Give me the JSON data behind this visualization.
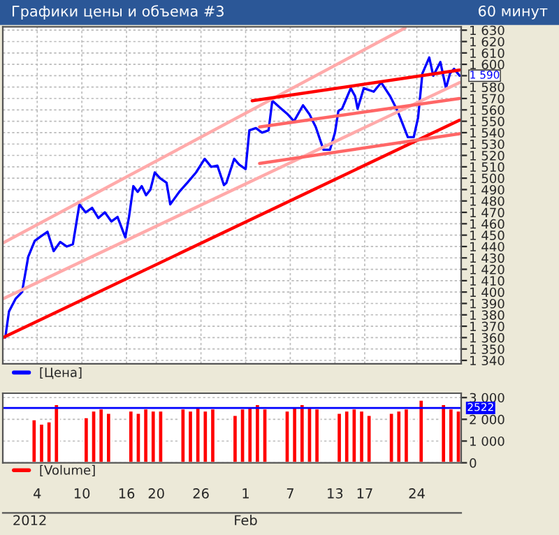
{
  "chart_data": [
    {
      "type": "line",
      "title": "Графики цены и объема #3",
      "subtitle": "60 минут",
      "series": [
        {
          "name": "[Цена]",
          "color": "#0000ff",
          "x": [
            "2011-12-30T17:00",
            "2011-12-31T05:00",
            "2012-01-01T02:00",
            "2012-01-01T23:00",
            "2012-01-02T19:00",
            "2012-01-03T16:00",
            "2012-01-04T12:00",
            "2012-01-05T09:00",
            "2012-01-06T05:00",
            "2012-01-07T02:00",
            "2012-01-07T23:00",
            "2012-01-08T19:00",
            "2012-01-09T16:00",
            "2012-01-10T12:00",
            "2012-01-11T09:00",
            "2012-01-12T05:00",
            "2012-01-13T02:00",
            "2012-01-13T23:00",
            "2012-01-14T19:00",
            "2012-01-15T20:00",
            "2012-01-16T08:00",
            "2012-01-16T22:00",
            "2012-01-17T12:00",
            "2012-01-18T01:00",
            "2012-01-18T15:00",
            "2012-01-19T05:00",
            "2012-01-19T19:00",
            "2012-01-20T12:00",
            "2012-01-21T09:00",
            "2012-01-21T21:00",
            "2012-01-23T02:00",
            "2012-01-24T07:00",
            "2012-01-25T08:00",
            "2012-01-26T12:00",
            "2012-01-27T09:00",
            "2012-01-28T05:00",
            "2012-01-29T02:00",
            "2012-01-29T10:00",
            "2012-01-30T11:00",
            "2012-01-31T03:00",
            "2012-02-01T00:00",
            "2012-02-01T12:00",
            "2012-02-02T09:00",
            "2012-02-03T05:00",
            "2012-02-04T02:00",
            "2012-02-04T14:00",
            "2012-02-05T19:00",
            "2012-02-06T16:00",
            "2012-02-07T12:00",
            "2012-02-08T17:00",
            "2012-02-09T14:00",
            "2012-02-10T10:00",
            "2012-02-11T11:00",
            "2012-02-12T08:00",
            "2012-02-13T00:00",
            "2012-02-13T11:00",
            "2012-02-13T23:00",
            "2012-02-14T13:00",
            "2012-02-15T03:00",
            "2012-02-15T17:00",
            "2012-02-16T01:00",
            "2012-02-16T21:00",
            "2012-02-18T05:00",
            "2012-02-19T05:00",
            "2012-02-20T10:00",
            "2012-02-21T10:00",
            "2012-02-22T19:00",
            "2012-02-23T14:00",
            "2012-02-24T04:00",
            "2012-02-24T18:00",
            "2012-02-25T16:00",
            "2012-02-26T05:00",
            "2012-02-27T04:00",
            "2012-02-27T22:00",
            "2012-02-28T11:00",
            "2012-02-29T00:00",
            "2012-02-29T18:00"
          ],
          "values": [
            1360,
            1383,
            1394,
            1400,
            1431,
            1445,
            1449,
            1453,
            1436,
            1444,
            1440,
            1442,
            1477,
            1470,
            1474,
            1465,
            1470,
            1462,
            1466,
            1448,
            1466,
            1493,
            1488,
            1493,
            1485,
            1490,
            1505,
            1500,
            1496,
            1477,
            1488,
            1497,
            1505,
            1517,
            1510,
            1511,
            1494,
            1496,
            1517,
            1512,
            1508,
            1542,
            1544,
            1540,
            1542,
            1568,
            1561,
            1556,
            1550,
            1564,
            1556,
            1545,
            1525,
            1525,
            1540,
            1559,
            1561,
            1570,
            1579,
            1572,
            1561,
            1579,
            1576,
            1584,
            1572,
            1559,
            1536,
            1536,
            1553,
            1592,
            1606,
            1590,
            1602,
            1579,
            1592,
            1596,
            1590
          ]
        },
        {
          "color": "#ff0000",
          "x": [
            "2011-12-30T09:00",
            "2012-02-29T18:00"
          ],
          "values": [
            1360,
            1551
          ]
        },
        {
          "color": "#ffaaaa",
          "x": [
            "2011-12-30T09:00",
            "2012-02-22T10:00"
          ],
          "values": [
            1443,
            1632
          ]
        },
        {
          "color": "#ffaaaa",
          "x": [
            "2011-12-30T09:00",
            "2012-02-29T18:00"
          ],
          "values": [
            1394,
            1584
          ]
        },
        {
          "color": "#ff0000",
          "x": [
            "2012-02-01T21:00",
            "2012-02-29T18:00"
          ],
          "values": [
            1568,
            1595
          ]
        },
        {
          "color": "#ff6666",
          "x": [
            "2012-02-02T21:00",
            "2012-02-29T18:00"
          ],
          "values": [
            1545,
            1570
          ]
        },
        {
          "color": "#ff6666",
          "x": [
            "2012-02-02T21:00",
            "2012-02-29T18:00"
          ],
          "values": [
            1513,
            1539
          ]
        }
      ],
      "annotations": [
        {
          "text": "1 590",
          "x": "2012-02-29T18:00",
          "y": 1590
        }
      ],
      "xlim": [
        "2011-12-30T09:00",
        "2012-02-29T23:00"
      ],
      "ylim": [
        1337,
        1633
      ],
      "yticks": [
        {
          "value": 1340,
          "label": "1 340"
        },
        {
          "value": 1350,
          "label": "1 350"
        },
        {
          "value": 1360,
          "label": "1 360"
        },
        {
          "value": 1370,
          "label": "1 370"
        },
        {
          "value": 1380,
          "label": "1 380"
        },
        {
          "value": 1390,
          "label": "1 390"
        },
        {
          "value": 1400,
          "label": "1 400"
        },
        {
          "value": 1410,
          "label": "1 410"
        },
        {
          "value": 1420,
          "label": "1 420"
        },
        {
          "value": 1430,
          "label": "1 430"
        },
        {
          "value": 1440,
          "label": "1 440"
        },
        {
          "value": 1450,
          "label": "1 450"
        },
        {
          "value": 1460,
          "label": "1 460"
        },
        {
          "value": 1470,
          "label": "1 470"
        },
        {
          "value": 1480,
          "label": "1 480"
        },
        {
          "value": 1490,
          "label": "1 490"
        },
        {
          "value": 1500,
          "label": "1 500"
        },
        {
          "value": 1510,
          "label": "1 510"
        },
        {
          "value": 1520,
          "label": "1 520"
        },
        {
          "value": 1530,
          "label": "1 530"
        },
        {
          "value": 1540,
          "label": "1 540"
        },
        {
          "value": 1550,
          "label": "1 550"
        },
        {
          "value": 1560,
          "label": "1 560"
        },
        {
          "value": 1570,
          "label": "1 570"
        },
        {
          "value": 1580,
          "label": "1 580"
        },
        {
          "value": 1590,
          "label": null
        },
        {
          "value": 1600,
          "label": "1 600"
        },
        {
          "value": 1610,
          "label": "1 610"
        },
        {
          "value": 1620,
          "label": "1 620"
        },
        {
          "value": 1630,
          "label": "1 630"
        }
      ],
      "xticks": [
        {
          "value": "2012-01-04",
          "label": null
        },
        {
          "value": "2012-01-10",
          "label": null
        },
        {
          "value": "2012-01-16",
          "label": null
        },
        {
          "value": "2012-01-20",
          "label": null
        },
        {
          "value": "2012-01-26",
          "label": null
        },
        {
          "value": "2012-02-01",
          "label": null
        },
        {
          "value": "2012-02-07",
          "label": null
        },
        {
          "value": "2012-02-13",
          "label": null
        },
        {
          "value": "2012-02-17",
          "label": null
        },
        {
          "value": "2012-02-24",
          "label": null
        }
      ],
      "tick_labels": "y",
      "grid": true,
      "legend": "bottom"
    },
    {
      "type": "bar",
      "series": [
        {
          "name": "[Volume]",
          "color": "#ff0000",
          "x": [
            "2012-01-03T14:00",
            "2012-01-04T14:00",
            "2012-01-05T14:00",
            "2012-01-06T14:00",
            "2012-01-10T14:00",
            "2012-01-11T14:00",
            "2012-01-12T14:00",
            "2012-01-13T14:00",
            "2012-01-16T14:00",
            "2012-01-17T14:00",
            "2012-01-18T14:00",
            "2012-01-19T14:00",
            "2012-01-20T14:00",
            "2012-01-23T14:00",
            "2012-01-24T14:00",
            "2012-01-25T14:00",
            "2012-01-26T14:00",
            "2012-01-27T14:00",
            "2012-01-30T14:00",
            "2012-01-31T14:00",
            "2012-02-01T14:00",
            "2012-02-02T14:00",
            "2012-02-03T14:00",
            "2012-02-06T14:00",
            "2012-02-07T14:00",
            "2012-02-08T14:00",
            "2012-02-09T14:00",
            "2012-02-10T14:00",
            "2012-02-13T14:00",
            "2012-02-14T14:00",
            "2012-02-15T14:00",
            "2012-02-16T14:00",
            "2012-02-17T14:00",
            "2012-02-20T14:00",
            "2012-02-21T14:00",
            "2012-02-22T14:00",
            "2012-02-24T14:00",
            "2012-02-27T14:00",
            "2012-02-28T14:00",
            "2012-02-29T14:00"
          ],
          "values": [
            2000,
            1800,
            1900,
            2700,
            2100,
            2400,
            2500,
            2300,
            2400,
            2300,
            2500,
            2400,
            2400,
            2500,
            2400,
            2600,
            2400,
            2500,
            2200,
            2500,
            2600,
            2700,
            2500,
            2400,
            2600,
            2700,
            2600,
            2500,
            2300,
            2400,
            2500,
            2400,
            2200,
            2300,
            2400,
            2500,
            2900,
            2700,
            2500,
            2400
          ]
        }
      ],
      "ref_lines": [
        {
          "axis": "y",
          "value": 2522,
          "label": "2522",
          "color": "#0000ff"
        }
      ],
      "xlim": [
        "2011-12-30T09:00",
        "2012-02-29T23:00"
      ],
      "ylim": [
        0,
        3200
      ],
      "yticks": [
        {
          "value": 0,
          "label": "0"
        },
        {
          "value": 1000,
          "label": "1 000"
        },
        {
          "value": 2000,
          "label": "2 000"
        },
        {
          "value": 3000,
          "label": "3 000"
        }
      ],
      "xticks": [
        {
          "value": "2012-01-04",
          "label": "4"
        },
        {
          "value": "2012-01-10",
          "label": "10"
        },
        {
          "value": "2012-01-16",
          "label": "16"
        },
        {
          "value": "2012-01-20",
          "label": "20"
        },
        {
          "value": "2012-01-26",
          "label": "26"
        },
        {
          "value": "2012-02-01",
          "label": "1"
        },
        {
          "value": "2012-02-07",
          "label": "7"
        },
        {
          "value": "2012-02-13",
          "label": "13"
        },
        {
          "value": "2012-02-17",
          "label": "17"
        },
        {
          "value": "2012-02-24",
          "label": "24"
        }
      ],
      "x2lim": [
        "2011-12-30T09:00",
        "2012-02-29T23:00"
      ],
      "x2ticks": [
        {
          "value": "2012-01-03",
          "label": "2012"
        },
        {
          "value": "2012-02-01",
          "label": "Feb"
        }
      ],
      "grid": "y",
      "legend": "bottom"
    }
  ]
}
